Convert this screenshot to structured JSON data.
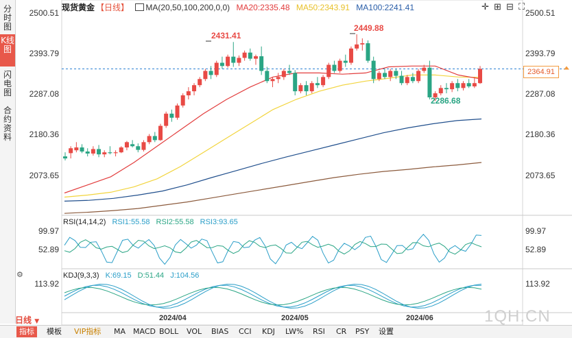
{
  "sidebar": {
    "tabs": [
      {
        "label": "分时图"
      },
      {
        "label": "K线图"
      },
      {
        "label": "闪电图"
      },
      {
        "label": "合约资料"
      }
    ]
  },
  "header": {
    "instrument": "现货黄金",
    "period": "【日线】",
    "ma_settings": "MA(20,50,100,200,0,0)",
    "ma20": "MA20:2335.48",
    "ma50": "MA50:2343.91",
    "ma100": "MA100:2241.41"
  },
  "price_axis": {
    "left": [
      "2500.51",
      "2393.79",
      "2287.08",
      "2180.36",
      "2073.65"
    ],
    "right": [
      "2500.51",
      "2393.79",
      "2287.08",
      "2180.36",
      "2073.65"
    ],
    "current_price": "2364.91"
  },
  "annotations": {
    "high1": "2431.41",
    "high2": "2449.88",
    "low1": "2286.68"
  },
  "rsi": {
    "header": "RSI(14,14,2)",
    "rsi1": "RSI1:55.58",
    "rsi2": "RSI2:55.58",
    "rsi3": "RSI3:93.65",
    "left": [
      "99.97",
      "52.89"
    ],
    "right": [
      "99.97",
      "52.89"
    ]
  },
  "kdj": {
    "header": "KDJ(9,3,3)",
    "k": "K:69.15",
    "d": "D:51.44",
    "j": "J:104.56",
    "left": "113.92",
    "right": "113.92"
  },
  "dates": [
    "2024/04",
    "2024/05",
    "2024/06"
  ],
  "period_button": "日线",
  "bottom_tabs": [
    "指标",
    "模板",
    "VIP指标",
    "MA",
    "MACD",
    "BOLL",
    "VOL",
    "BIAS",
    "CCI",
    "KDJ",
    "LW%",
    "RSI",
    "CR",
    "PSY",
    "设置"
  ],
  "watermark": "1QH.CN",
  "colors": {
    "up": "#e84a45",
    "down": "#2aa584",
    "ma20": "#e23c3c",
    "ma50": "#f2d43c",
    "ma100": "#1f4e8c",
    "ma200": "#8b5a3c",
    "rsi_line": "#2a9ec8",
    "rsi_line2": "#2aa584",
    "dashed": "#2a7fd4"
  },
  "chart_data": {
    "type": "candlestick",
    "instrument": "现货黄金",
    "period": "日线",
    "y_ticks": [
      2500.51,
      2393.79,
      2287.08,
      2180.36,
      2073.65
    ],
    "current_price": 2364.91,
    "ma_last": {
      "MA20": 2335.48,
      "MA50": 2343.91,
      "MA100": 2241.41
    },
    "candles": [
      [
        2150,
        2160,
        2140,
        2145
      ],
      [
        2158,
        2175,
        2145,
        2170
      ],
      [
        2165,
        2185,
        2160,
        2172
      ],
      [
        2172,
        2180,
        2158,
        2162
      ],
      [
        2162,
        2170,
        2150,
        2157
      ],
      [
        2157,
        2175,
        2152,
        2168
      ],
      [
        2168,
        2178,
        2148,
        2155
      ],
      [
        2155,
        2165,
        2148,
        2160
      ],
      [
        2160,
        2175,
        2155,
        2158
      ],
      [
        2158,
        2165,
        2150,
        2160
      ],
      [
        2160,
        2175,
        2158,
        2172
      ],
      [
        2172,
        2188,
        2165,
        2185
      ],
      [
        2180,
        2190,
        2172,
        2175
      ],
      [
        2175,
        2182,
        2160,
        2166
      ],
      [
        2166,
        2190,
        2162,
        2185
      ],
      [
        2185,
        2205,
        2180,
        2200
      ],
      [
        2200,
        2210,
        2185,
        2190
      ],
      [
        2190,
        2230,
        2188,
        2225
      ],
      [
        2225,
        2260,
        2220,
        2255
      ],
      [
        2255,
        2265,
        2235,
        2245
      ],
      [
        2245,
        2280,
        2240,
        2275
      ],
      [
        2275,
        2305,
        2270,
        2300
      ],
      [
        2300,
        2320,
        2290,
        2310
      ],
      [
        2310,
        2330,
        2300,
        2325
      ],
      [
        2325,
        2345,
        2320,
        2340
      ],
      [
        2340,
        2365,
        2335,
        2360
      ],
      [
        2360,
        2372,
        2340,
        2350
      ],
      [
        2350,
        2385,
        2345,
        2380
      ],
      [
        2380,
        2395,
        2365,
        2372
      ],
      [
        2372,
        2400,
        2368,
        2395
      ],
      [
        2395,
        2431,
        2370,
        2380
      ],
      [
        2380,
        2398,
        2372,
        2392
      ],
      [
        2392,
        2410,
        2385,
        2405
      ],
      [
        2405,
        2415,
        2385,
        2390
      ],
      [
        2390,
        2400,
        2375,
        2396
      ],
      [
        2396,
        2420,
        2350,
        2360
      ],
      [
        2360,
        2370,
        2330,
        2335
      ],
      [
        2335,
        2345,
        2320,
        2340
      ],
      [
        2340,
        2355,
        2330,
        2345
      ],
      [
        2345,
        2365,
        2338,
        2360
      ],
      [
        2360,
        2375,
        2350,
        2355
      ],
      [
        2355,
        2362,
        2300,
        2310
      ],
      [
        2310,
        2330,
        2305,
        2325
      ],
      [
        2325,
        2335,
        2300,
        2310
      ],
      [
        2310,
        2335,
        2305,
        2330
      ],
      [
        2330,
        2345,
        2318,
        2325
      ],
      [
        2325,
        2350,
        2320,
        2345
      ],
      [
        2345,
        2380,
        2340,
        2375
      ],
      [
        2375,
        2385,
        2355,
        2360
      ],
      [
        2360,
        2390,
        2355,
        2385
      ],
      [
        2385,
        2400,
        2370,
        2380
      ],
      [
        2380,
        2420,
        2375,
        2415
      ],
      [
        2415,
        2450,
        2410,
        2425
      ],
      [
        2425,
        2440,
        2410,
        2428
      ],
      [
        2428,
        2435,
        2380,
        2385
      ],
      [
        2385,
        2395,
        2330,
        2340
      ],
      [
        2340,
        2360,
        2335,
        2355
      ],
      [
        2355,
        2365,
        2340,
        2345
      ],
      [
        2345,
        2365,
        2335,
        2360
      ],
      [
        2360,
        2365,
        2340,
        2348
      ],
      [
        2348,
        2360,
        2325,
        2330
      ],
      [
        2330,
        2350,
        2325,
        2345
      ],
      [
        2345,
        2355,
        2330,
        2335
      ],
      [
        2335,
        2365,
        2330,
        2360
      ],
      [
        2360,
        2375,
        2355,
        2368
      ],
      [
        2368,
        2385,
        2290,
        2295
      ],
      [
        2295,
        2310,
        2286,
        2305
      ],
      [
        2305,
        2325,
        2300,
        2318
      ],
      [
        2318,
        2330,
        2305,
        2315
      ],
      [
        2315,
        2335,
        2308,
        2330
      ],
      [
        2330,
        2340,
        2310,
        2318
      ],
      [
        2318,
        2335,
        2312,
        2330
      ],
      [
        2330,
        2340,
        2318,
        2322
      ],
      [
        2322,
        2345,
        2318,
        2330
      ],
      [
        2330,
        2372,
        2328,
        2365
      ]
    ],
    "ma20": [
      2060,
      2080,
      2100,
      2135,
      2175,
      2215,
      2255,
      2290,
      2320,
      2345,
      2355,
      2355,
      2352,
      2355,
      2370,
      2372,
      2372,
      2350,
      2340
    ],
    "ma50": [
      2050,
      2055,
      2062,
      2075,
      2095,
      2125,
      2160,
      2195,
      2230,
      2265,
      2290,
      2310,
      2325,
      2335,
      2342,
      2350,
      2350,
      2345,
      2344
    ],
    "ma100": [
      2040,
      2042,
      2047,
      2055,
      2065,
      2080,
      2098,
      2115,
      2132,
      2148,
      2163,
      2178,
      2193,
      2208,
      2220,
      2230,
      2238,
      2242
    ],
    "ma200": [
      2010,
      2013,
      2017,
      2022,
      2030,
      2038,
      2048,
      2058,
      2068,
      2078,
      2088,
      2098,
      2106,
      2113,
      2118,
      2124,
      2129,
      2135
    ]
  }
}
